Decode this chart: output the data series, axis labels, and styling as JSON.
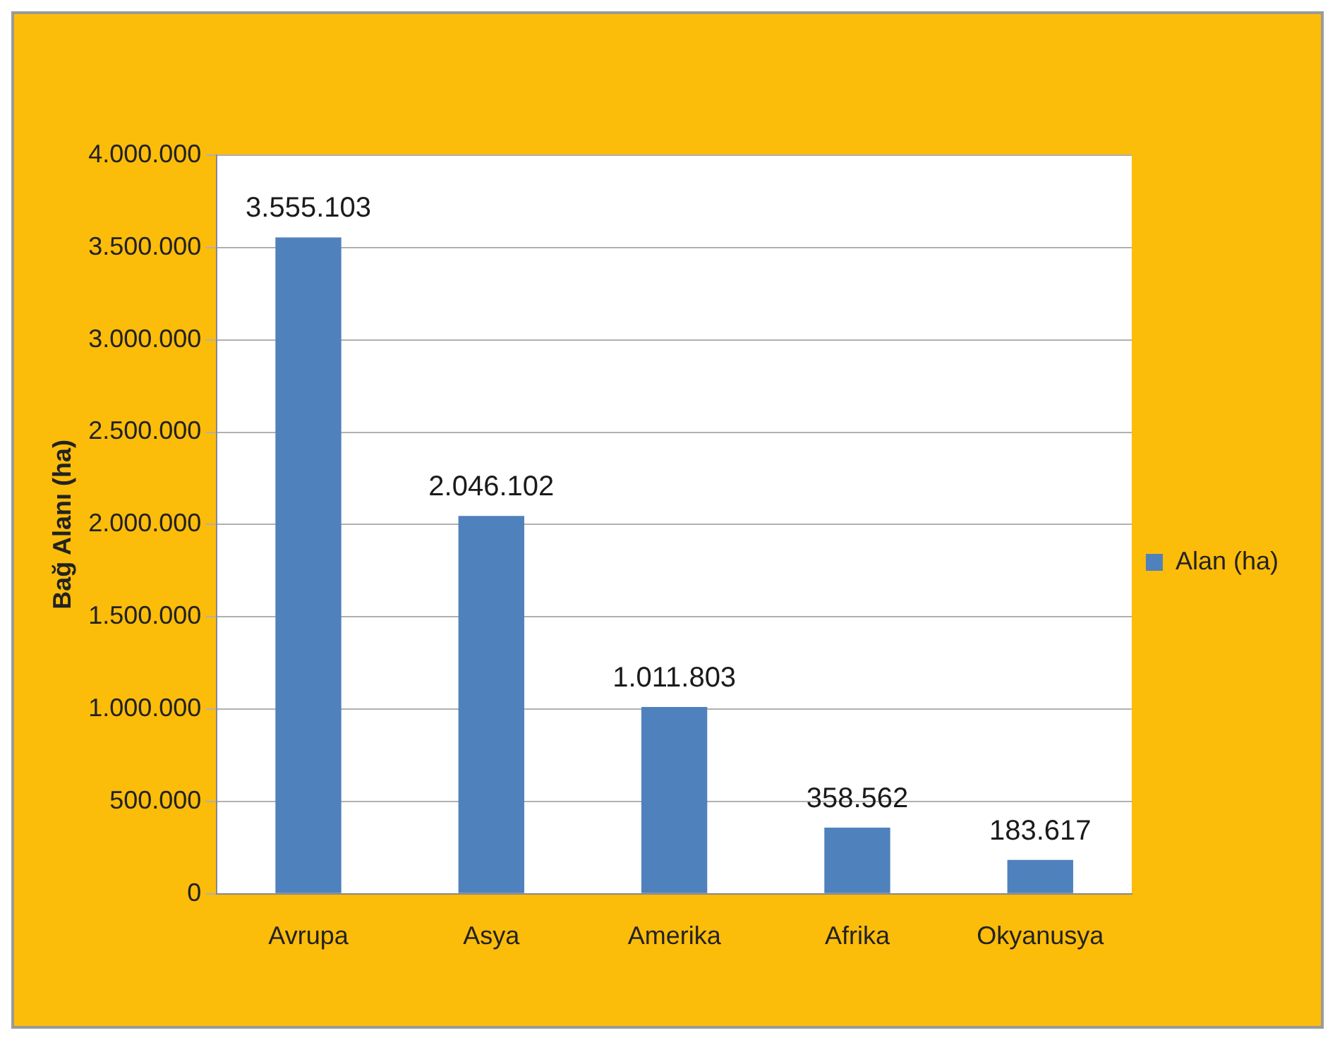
{
  "chart_data": {
    "type": "bar",
    "ylabel": "Bağ Alanı (ha)",
    "categories": [
      "Avrupa",
      "Asya",
      "Amerika",
      "Afrika",
      "Okyanusya"
    ],
    "series": [
      {
        "name": "Alan (ha)",
        "color": "#4f81bd",
        "values": [
          3555103,
          2046102,
          1011803,
          358562,
          183617
        ],
        "value_labels": [
          "3.555.103",
          "2.046.102",
          "1.011.803",
          "358.562",
          "183.617"
        ]
      }
    ],
    "ylim": [
      0,
      4000000
    ],
    "yticks": [
      {
        "value": 0,
        "label": "0"
      },
      {
        "value": 500000,
        "label": "500.000"
      },
      {
        "value": 1000000,
        "label": "1.000.000"
      },
      {
        "value": 1500000,
        "label": "1.500.000"
      },
      {
        "value": 2000000,
        "label": "2.000.000"
      },
      {
        "value": 2500000,
        "label": "2.500.000"
      },
      {
        "value": 3000000,
        "label": "3.000.000"
      },
      {
        "value": 3500000,
        "label": "3.500.000"
      },
      {
        "value": 4000000,
        "label": "4.000.000"
      }
    ],
    "grid": "y",
    "legend": "right"
  }
}
